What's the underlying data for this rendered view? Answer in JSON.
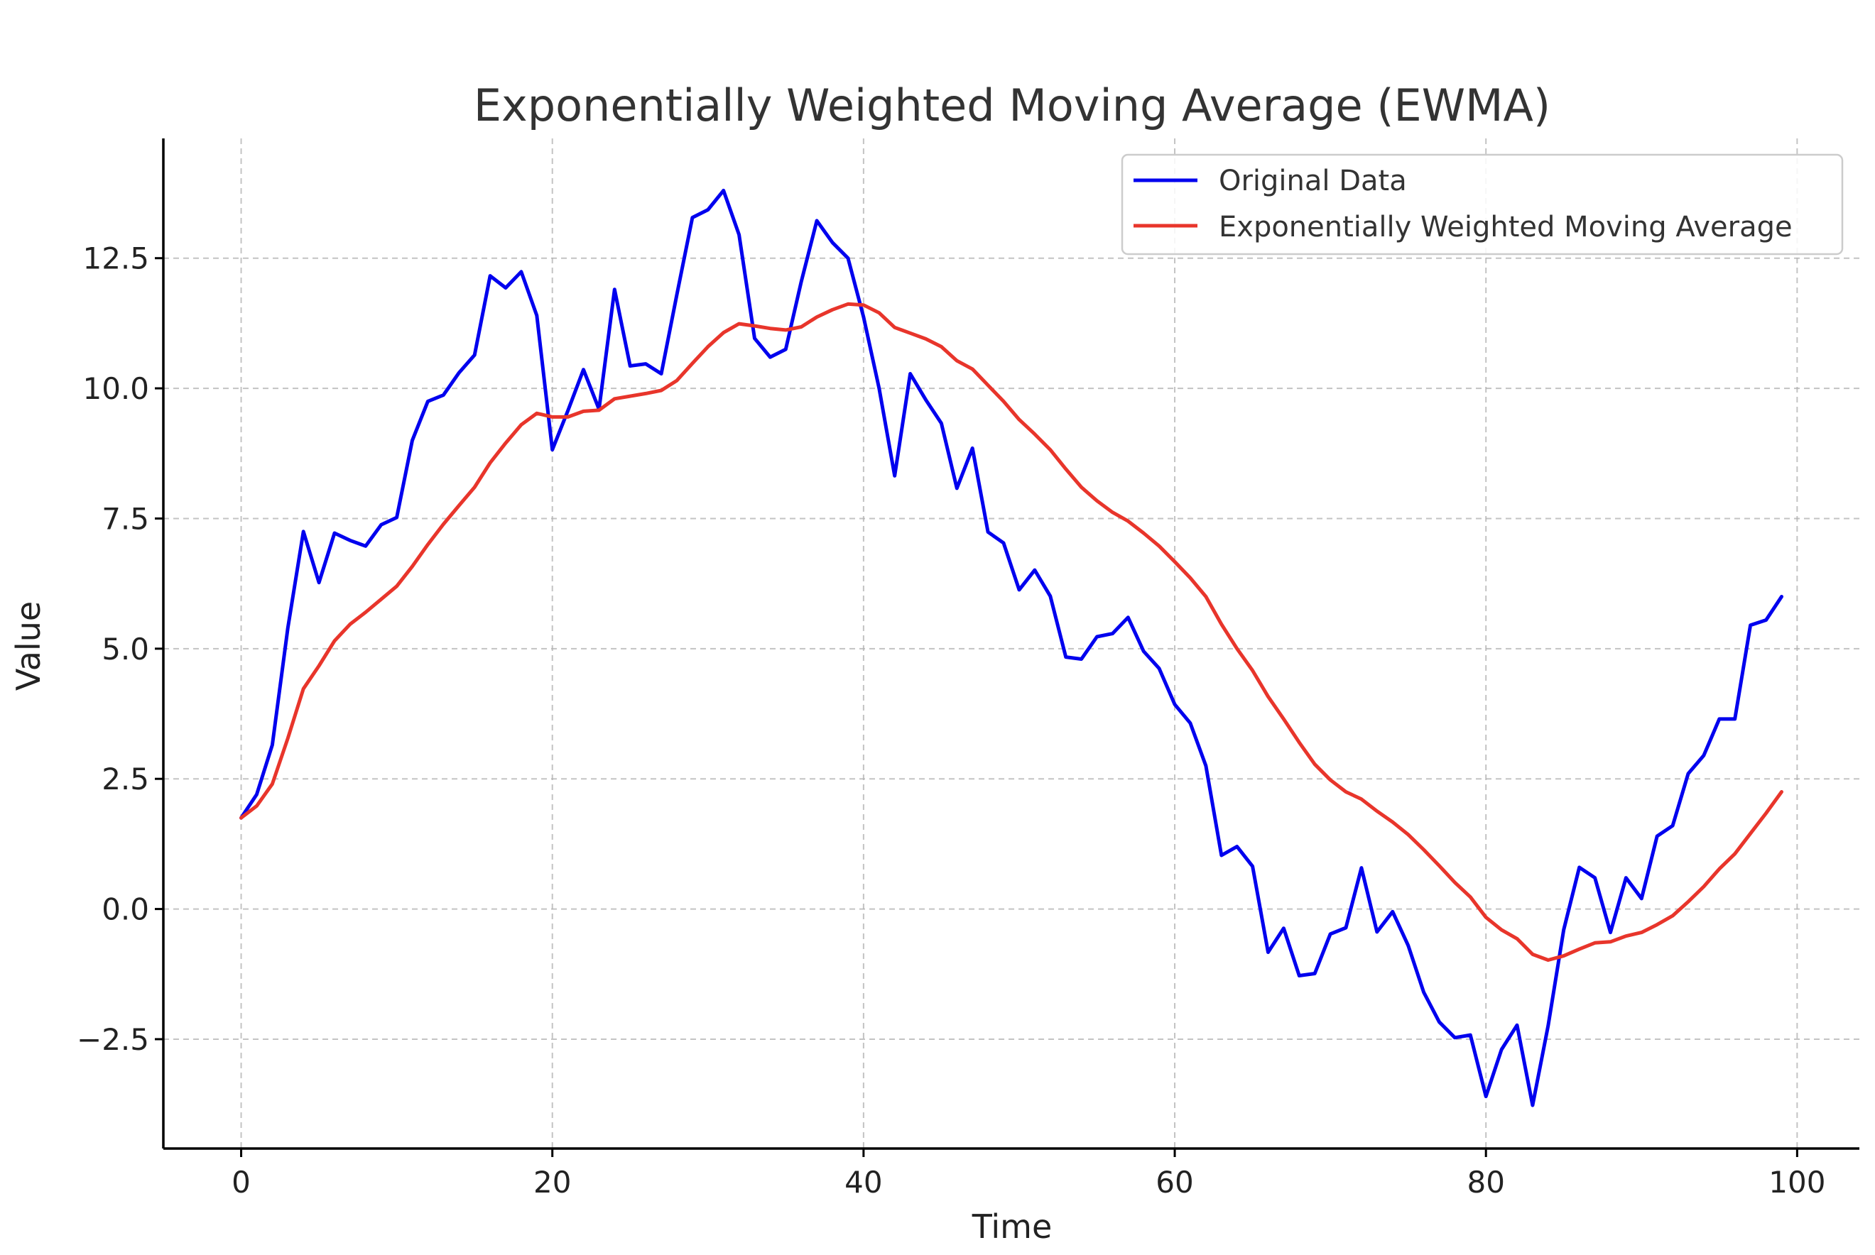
{
  "chart_data": {
    "type": "line",
    "title": "Exponentially Weighted Moving Average (EWMA)",
    "xlabel": "Time",
    "ylabel": "Value",
    "xlim": [
      -5,
      104
    ],
    "ylim": [
      -4.6,
      14.8
    ],
    "xticks": [
      0,
      20,
      40,
      60,
      80,
      100
    ],
    "xtick_labels": [
      "0",
      "20",
      "40",
      "60",
      "80",
      "100"
    ],
    "yticks": [
      -2.5,
      0.0,
      2.5,
      5.0,
      7.5,
      10.0,
      12.5
    ],
    "ytick_labels": [
      "−2.5",
      "0.0",
      "2.5",
      "5.0",
      "7.5",
      "10.0",
      "12.5"
    ],
    "grid": true,
    "legend_position": "top-right",
    "x": [
      0,
      1,
      2,
      3,
      4,
      5,
      6,
      7,
      8,
      9,
      10,
      11,
      12,
      13,
      14,
      15,
      16,
      17,
      18,
      19,
      20,
      21,
      22,
      23,
      24,
      25,
      26,
      27,
      28,
      29,
      30,
      31,
      32,
      33,
      34,
      35,
      36,
      37,
      38,
      39,
      40,
      41,
      42,
      43,
      44,
      45,
      46,
      47,
      48,
      49,
      50,
      51,
      52,
      53,
      54,
      55,
      56,
      57,
      58,
      59,
      60,
      61,
      62,
      63,
      64,
      65,
      66,
      67,
      68,
      69,
      70,
      71,
      72,
      73,
      74,
      75,
      76,
      77,
      78,
      79,
      80,
      81,
      82,
      83,
      84,
      85,
      86,
      87,
      88,
      89,
      90,
      91,
      92,
      93,
      94,
      95,
      96,
      97,
      98,
      99
    ],
    "series": [
      {
        "name": "Original Data",
        "color": "#0000ee",
        "values": [
          1.75,
          2.2,
          3.15,
          5.4,
          7.25,
          6.27,
          7.22,
          7.08,
          6.97,
          7.38,
          7.52,
          9.0,
          9.75,
          9.87,
          10.3,
          10.64,
          12.16,
          11.93,
          12.24,
          11.4,
          8.82,
          9.57,
          10.36,
          9.6,
          11.9,
          10.43,
          10.47,
          10.28,
          11.8,
          13.28,
          13.43,
          13.8,
          12.95,
          10.96,
          10.6,
          10.75,
          12.05,
          13.22,
          12.8,
          12.5,
          11.37,
          10.0,
          8.32,
          10.28,
          9.78,
          9.33,
          8.08,
          8.85,
          7.24,
          7.03,
          6.13,
          6.51,
          6.01,
          4.84,
          4.8,
          5.23,
          5.29,
          5.6,
          4.95,
          4.62,
          3.93,
          3.57,
          2.75,
          1.03,
          1.2,
          0.82,
          -0.83,
          -0.37,
          -1.28,
          -1.24,
          -0.48,
          -0.36,
          0.79,
          -0.44,
          -0.05,
          -0.7,
          -1.6,
          -2.17,
          -2.47,
          -2.42,
          -3.6,
          -2.7,
          -2.23,
          -3.77,
          -2.24,
          -0.4,
          0.8,
          0.6,
          -0.45,
          0.6,
          0.2,
          1.4,
          1.6,
          2.6,
          2.95,
          3.65,
          3.65,
          5.45,
          5.55,
          6.0
        ]
      },
      {
        "name": "Exponentially Weighted Moving Average",
        "color": "#e8352b",
        "values": [
          1.75,
          1.98,
          2.4,
          3.28,
          4.23,
          4.67,
          5.15,
          5.47,
          5.7,
          5.95,
          6.2,
          6.58,
          7.0,
          7.39,
          7.75,
          8.1,
          8.57,
          8.95,
          9.3,
          9.52,
          9.45,
          9.45,
          9.56,
          9.58,
          9.8,
          9.85,
          9.9,
          9.96,
          10.15,
          10.48,
          10.8,
          11.07,
          11.24,
          11.2,
          11.15,
          11.12,
          11.18,
          11.37,
          11.51,
          11.62,
          11.6,
          11.45,
          11.17,
          11.06,
          10.95,
          10.8,
          10.53,
          10.37,
          10.06,
          9.75,
          9.4,
          9.12,
          8.82,
          8.45,
          8.1,
          7.84,
          7.62,
          7.45,
          7.22,
          6.97,
          6.67,
          6.36,
          6.0,
          5.47,
          5.0,
          4.58,
          4.08,
          3.65,
          3.2,
          2.78,
          2.48,
          2.25,
          2.11,
          1.88,
          1.67,
          1.43,
          1.14,
          0.83,
          0.51,
          0.23,
          -0.16,
          -0.4,
          -0.57,
          -0.87,
          -0.98,
          -0.9,
          -0.77,
          -0.65,
          -0.63,
          -0.52,
          -0.45,
          -0.3,
          -0.13,
          0.14,
          0.43,
          0.77,
          1.06,
          1.45,
          1.84,
          2.25
        ]
      }
    ]
  }
}
